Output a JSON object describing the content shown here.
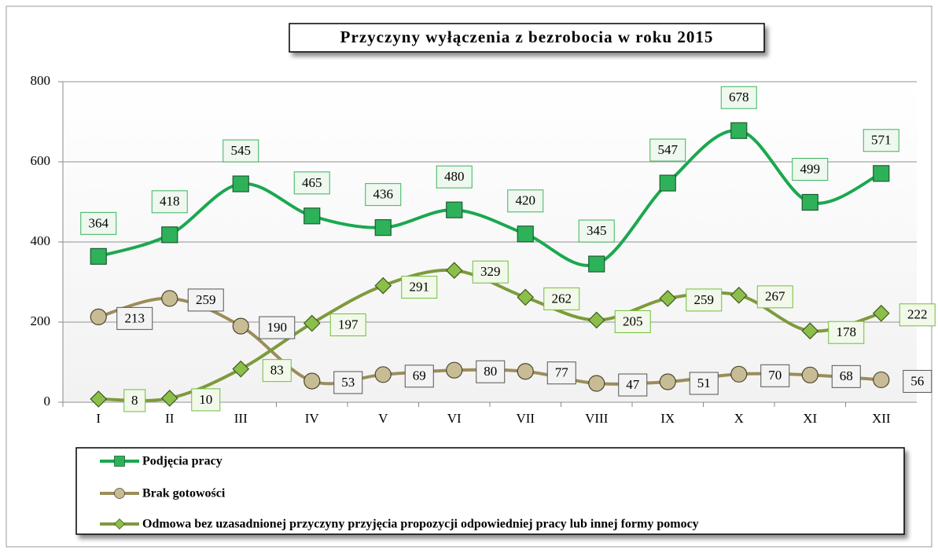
{
  "chart_data": {
    "type": "line",
    "title": "Przyczyny wyłączenia z bezrobocia w roku 2015",
    "categories": [
      "I",
      "II",
      "III",
      "IV",
      "V",
      "VI",
      "VII",
      "VIII",
      "IX",
      "X",
      "XI",
      "XII"
    ],
    "series": [
      {
        "name": "Podjęcia pracy",
        "color": "#1aa84f",
        "marker": "square",
        "values": [
          364,
          418,
          545,
          465,
          436,
          480,
          420,
          345,
          547,
          678,
          499,
          571
        ]
      },
      {
        "name": "Brak gotowości",
        "color": "#9b8c5a",
        "marker": "circle",
        "values": [
          213,
          259,
          190,
          53,
          69,
          80,
          77,
          47,
          51,
          70,
          68,
          56
        ]
      },
      {
        "name": "Odmowa bez uzasadnionej przyczyny przyjęcia propozycji odpowiedniej pracy lub innej formy pomocy",
        "color": "#7e9a3c",
        "marker": "diamond",
        "values": [
          8,
          10,
          83,
          197,
          291,
          329,
          262,
          205,
          259,
          267,
          178,
          222
        ]
      }
    ],
    "ylim": [
      0,
      800
    ],
    "yticks": [
      0,
      200,
      400,
      600,
      800
    ],
    "grid": true,
    "legend": "bottom",
    "smooth": true
  }
}
